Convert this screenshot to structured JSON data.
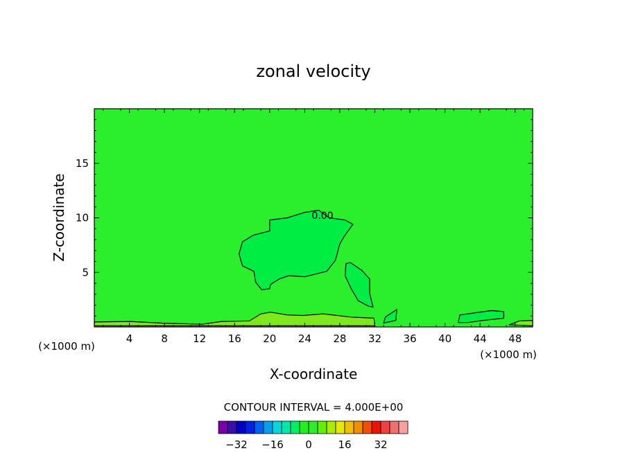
{
  "chart_data": {
    "type": "heatmap",
    "title": "zonal velocity",
    "xlabel": "X-coordinate",
    "ylabel": "Z-coordinate",
    "x_unit_left": "(×1000 m)",
    "x_unit_right": "(×1000 m)",
    "xlim": [
      0,
      50
    ],
    "ylim": [
      0,
      20
    ],
    "x_ticks": [
      4,
      8,
      12,
      16,
      20,
      24,
      28,
      32,
      36,
      40,
      44,
      48
    ],
    "y_ticks": [
      5,
      10,
      15
    ],
    "background_field_color": "#2aef2a",
    "contour_label": "0.00",
    "contour_interval_text": "CONTOUR INTERVAL = 4.000E+00",
    "regions": [
      {
        "name": "negative-velocity-blob",
        "fill": "#00ee44",
        "points": [
          [
            20,
            8.8
          ],
          [
            20,
            9.8
          ],
          [
            22,
            10
          ],
          [
            24,
            10.5
          ],
          [
            25.6,
            10.7
          ],
          [
            26.8,
            10
          ],
          [
            28.6,
            9.8
          ],
          [
            29.5,
            9.4
          ],
          [
            28.5,
            8.3
          ],
          [
            28,
            7.6
          ],
          [
            27.5,
            6.1
          ],
          [
            26.5,
            5.1
          ],
          [
            24,
            4.6
          ],
          [
            22.2,
            4.7
          ],
          [
            21.1,
            4.4
          ],
          [
            20.1,
            3.9
          ],
          [
            20,
            3.5
          ],
          [
            19.1,
            3.4
          ],
          [
            18.4,
            4.1
          ],
          [
            18.2,
            5.1
          ],
          [
            16.9,
            5.6
          ],
          [
            16.5,
            6.7
          ],
          [
            16.9,
            7.8
          ],
          [
            18.1,
            8.4
          ]
        ]
      },
      {
        "name": "negative-velocity-lobe",
        "fill": "#00ee44",
        "points": [
          [
            28.7,
            5.8
          ],
          [
            28.6,
            4.7
          ],
          [
            29.3,
            3.5
          ],
          [
            30.1,
            2.4
          ],
          [
            31.3,
            1.9
          ],
          [
            31.8,
            1.8
          ],
          [
            31.4,
            3.1
          ],
          [
            31.4,
            4.4
          ],
          [
            30.5,
            5.2
          ],
          [
            29.2,
            5.9
          ]
        ]
      },
      {
        "name": "surface-positive-layer",
        "fill": "#7ee81e",
        "points": [
          [
            0,
            0.1
          ],
          [
            0,
            0.45
          ],
          [
            4,
            0.5
          ],
          [
            7.7,
            0.35
          ],
          [
            12.3,
            0.25
          ],
          [
            14.5,
            0.5
          ],
          [
            17.7,
            0.55
          ],
          [
            19,
            1.2
          ],
          [
            20.1,
            1.35
          ],
          [
            22,
            1.1
          ],
          [
            23.8,
            1.05
          ],
          [
            26.1,
            1.2
          ],
          [
            29.3,
            0.9
          ],
          [
            31.9,
            0.8
          ],
          [
            32,
            0.1
          ]
        ]
      },
      {
        "name": "surface-cell-east",
        "fill": "#00ee44",
        "points": [
          [
            41.5,
            0.4
          ],
          [
            41.7,
            1.1
          ],
          [
            43.5,
            1.3
          ],
          [
            45.3,
            1.5
          ],
          [
            46.7,
            1.4
          ],
          [
            46.7,
            0.8
          ],
          [
            44.3,
            0.6
          ],
          [
            42.6,
            0.4
          ]
        ]
      },
      {
        "name": "surface-cell-mid",
        "fill": "#00ee44",
        "points": [
          [
            33,
            0.35
          ],
          [
            33.2,
            0.9
          ],
          [
            34.5,
            1.6
          ],
          [
            34.4,
            0.6
          ]
        ]
      },
      {
        "name": "surface-cell-far-east",
        "fill": "#7ee81e",
        "points": [
          [
            47.3,
            0.2
          ],
          [
            48.5,
            0.55
          ],
          [
            50,
            0.6
          ],
          [
            50,
            0.1
          ]
        ]
      }
    ],
    "colorbar": {
      "colors": [
        "#7b00a8",
        "#3a0ea8",
        "#0000c8",
        "#0020e8",
        "#0060f0",
        "#00a0f0",
        "#00d8e0",
        "#00e8a8",
        "#00ee66",
        "#20f020",
        "#2aef2a",
        "#60f000",
        "#a8ec00",
        "#e8e800",
        "#f0c000",
        "#f09000",
        "#f05000",
        "#f01000",
        "#f04040",
        "#f07070",
        "#f8a0a0"
      ],
      "tick_labels": [
        "−32",
        "−16",
        "0",
        "16",
        "32"
      ],
      "tick_values": [
        -32,
        -16,
        0,
        16,
        32
      ],
      "vmin": -40,
      "vmax": 44
    }
  }
}
